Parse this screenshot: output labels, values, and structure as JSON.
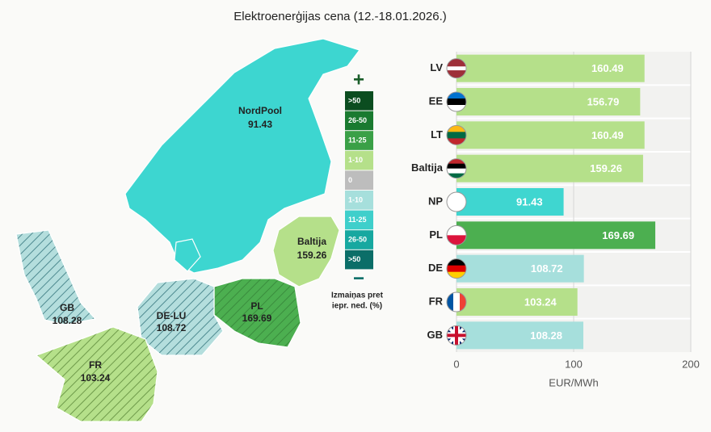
{
  "chart_data": {
    "type": "bar",
    "orientation": "horizontal",
    "title": "Elektroenerģijas cena (12.-18.01.2026.)",
    "categories": [
      "LV",
      "EE",
      "LT",
      "Baltija",
      "NP",
      "PL",
      "DE",
      "FR",
      "GB"
    ],
    "values": [
      160.49,
      156.79,
      160.49,
      159.26,
      91.43,
      169.69,
      108.72,
      103.24,
      108.28
    ],
    "colors": [
      "#b5e08a",
      "#b5e08a",
      "#b5e08a",
      "#b5e08a",
      "#3fd6d0",
      "#4caf50",
      "#a6dfdc",
      "#b5e08a",
      "#a6dfdc"
    ],
    "xlim": [
      0,
      200
    ],
    "xticks": [
      0,
      100,
      200
    ],
    "xlabel": "EUR/MWh",
    "grid": true
  },
  "map": {
    "regions": [
      {
        "name": "NordPool",
        "value": "91.43"
      },
      {
        "name": "Baltija",
        "value": "159.26"
      },
      {
        "name": "PL",
        "value": "169.69"
      },
      {
        "name": "DE-LU",
        "value": "108.72"
      },
      {
        "name": "GB",
        "value": "108.28"
      },
      {
        "name": "FR",
        "value": "103.24"
      }
    ]
  },
  "legend": {
    "plus": "+",
    "minus": "−",
    "caption": [
      "Izmaiņas pret",
      "iepr. ned. (%)"
    ],
    "items": [
      {
        "label": ">50",
        "color": "#0b4d20"
      },
      {
        "label": "26-50",
        "color": "#1a7a30"
      },
      {
        "label": "11-25",
        "color": "#3aa047"
      },
      {
        "label": "1-10",
        "color": "#b5e08a"
      },
      {
        "label": "0",
        "color": "#bdbdbd"
      },
      {
        "label": "1-10",
        "color": "#a6dfdc"
      },
      {
        "label": "11-25",
        "color": "#3fcfcb"
      },
      {
        "label": "26-50",
        "color": "#17a8a0"
      },
      {
        "label": ">50",
        "color": "#0b6e68"
      }
    ]
  }
}
